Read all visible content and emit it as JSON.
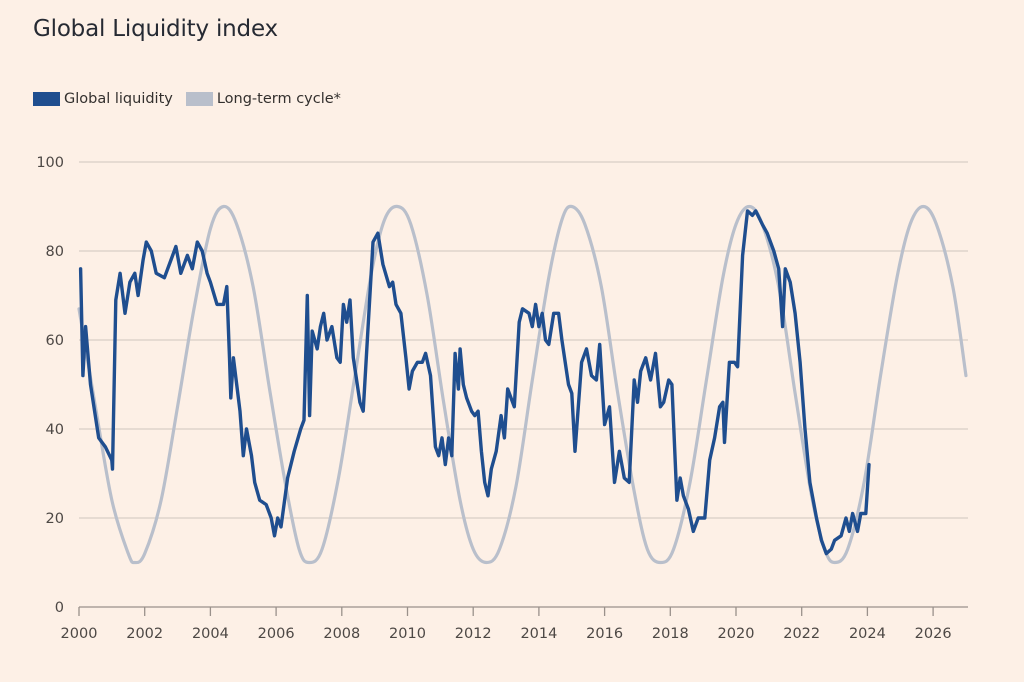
{
  "title": "Global Liquidity index",
  "legend": [
    {
      "label": "Global liquidity",
      "color": "#1f4e8f"
    },
    {
      "label": "Long-term cycle*",
      "color": "#b9bfcb"
    }
  ],
  "chart_data": {
    "type": "line",
    "title": "Global Liquidity index",
    "xlabel": "",
    "ylabel": "",
    "xlim": [
      2000,
      2027.1
    ],
    "ylim": [
      0,
      100
    ],
    "x_ticks": [
      2000,
      2002,
      2004,
      2006,
      2008,
      2010,
      2012,
      2014,
      2016,
      2018,
      2020,
      2022,
      2024,
      2026
    ],
    "x_tick_labels": [
      "2000",
      "2002",
      "2004",
      "2006",
      "2008",
      "2010",
      "2012",
      "2014",
      "2016",
      "2018",
      "2020",
      "2022",
      "2024",
      "2026"
    ],
    "y_ticks": [
      0,
      20,
      40,
      60,
      80,
      100
    ],
    "y_tick_labels": [
      "0",
      "20",
      "40",
      "60",
      "80",
      "100"
    ],
    "grid": "horizontal",
    "legend_position": "top-left",
    "series": [
      {
        "name": "Long-term cycle*",
        "color": "#b9bfcb",
        "x": [
          2000.0,
          2000.5,
          2001.0,
          2001.5,
          2001.7,
          2002.0,
          2002.5,
          2003.0,
          2003.5,
          2004.0,
          2004.4,
          2004.8,
          2005.3,
          2005.8,
          2006.3,
          2006.7,
          2007.0,
          2007.4,
          2007.9,
          2008.4,
          2008.9,
          2009.3,
          2009.7,
          2010.1,
          2010.6,
          2011.1,
          2011.6,
          2012.0,
          2012.4,
          2012.8,
          2013.3,
          2013.8,
          2014.3,
          2014.7,
          2015.0,
          2015.4,
          2015.9,
          2016.4,
          2016.9,
          2017.3,
          2017.7,
          2018.1,
          2018.6,
          2019.1,
          2019.6,
          2020.0,
          2020.4,
          2020.8,
          2021.3,
          2021.8,
          2022.3,
          2022.7,
          2023.0,
          2023.4,
          2023.9,
          2024.4,
          2024.9,
          2025.3,
          2025.7,
          2026.1,
          2026.6,
          2027.0
        ],
        "values": [
          67,
          45,
          24,
          12,
          10,
          12,
          24,
          45,
          67,
          85,
          90,
          86,
          72,
          49,
          27,
          13,
          10,
          13,
          29,
          52,
          75,
          87,
          90,
          86,
          70,
          46,
          24,
          13,
          10,
          13,
          27,
          51,
          74,
          87,
          90,
          86,
          72,
          48,
          26,
          13,
          10,
          13,
          28,
          51,
          74,
          86,
          90,
          86,
          72,
          48,
          25,
          13,
          10,
          13,
          28,
          52,
          74,
          86,
          90,
          86,
          72,
          52
        ]
      },
      {
        "name": "Global liquidity",
        "color": "#1f4e8f",
        "x": [
          2000.05,
          2000.12,
          2000.2,
          2000.35,
          2000.6,
          2000.8,
          2001.0,
          2001.02,
          2001.12,
          2001.25,
          2001.4,
          2001.55,
          2001.7,
          2001.8,
          2001.95,
          2002.05,
          2002.2,
          2002.35,
          2002.6,
          2002.8,
          2002.95,
          2003.1,
          2003.3,
          2003.45,
          2003.6,
          2003.75,
          2003.9,
          2004.0,
          2004.2,
          2004.4,
          2004.5,
          2004.58,
          2004.62,
          2004.7,
          2004.8,
          2004.9,
          2005.0,
          2005.1,
          2005.25,
          2005.35,
          2005.5,
          2005.7,
          2005.85,
          2005.95,
          2006.05,
          2006.15,
          2006.35,
          2006.55,
          2006.75,
          2006.85,
          2006.95,
          2007.02,
          2007.1,
          2007.25,
          2007.35,
          2007.45,
          2007.55,
          2007.7,
          2007.85,
          2007.95,
          2008.05,
          2008.15,
          2008.25,
          2008.35,
          2008.55,
          2008.65,
          2008.8,
          2008.95,
          2009.1,
          2009.25,
          2009.45,
          2009.55,
          2009.65,
          2009.8,
          2009.95,
          2010.05,
          2010.15,
          2010.3,
          2010.45,
          2010.55,
          2010.7,
          2010.85,
          2010.95,
          2011.05,
          2011.15,
          2011.25,
          2011.35,
          2011.45,
          2011.55,
          2011.6,
          2011.7,
          2011.8,
          2011.95,
          2012.05,
          2012.15,
          2012.25,
          2012.35,
          2012.45,
          2012.55,
          2012.7,
          2012.85,
          2012.95,
          2013.05,
          2013.25,
          2013.4,
          2013.5,
          2013.7,
          2013.8,
          2013.9,
          2014.0,
          2014.1,
          2014.2,
          2014.3,
          2014.45,
          2014.6,
          2014.7,
          2014.9,
          2015.0,
          2015.1,
          2015.3,
          2015.45,
          2015.6,
          2015.75,
          2015.85,
          2016.0,
          2016.15,
          2016.3,
          2016.45,
          2016.6,
          2016.75,
          2016.9,
          2017.0,
          2017.1,
          2017.25,
          2017.4,
          2017.55,
          2017.7,
          2017.8,
          2017.95,
          2018.05,
          2018.2,
          2018.3,
          2018.4,
          2018.55,
          2018.7,
          2018.85,
          2019.05,
          2019.2,
          2019.35,
          2019.5,
          2019.6,
          2019.65,
          2019.8,
          2019.95,
          2020.05,
          2020.2,
          2020.35,
          2020.5,
          2020.6,
          2020.8,
          2020.95,
          2021.15,
          2021.3,
          2021.42,
          2021.5,
          2021.65,
          2021.8,
          2021.95,
          2022.1,
          2022.25,
          2022.45,
          2022.6,
          2022.75,
          2022.9,
          2023.0,
          2023.2,
          2023.35,
          2023.45,
          2023.55,
          2023.7,
          2023.8,
          2023.95,
          2024.05
        ],
        "values": [
          76,
          52,
          63,
          50,
          38,
          36,
          33,
          31,
          69,
          75,
          66,
          73,
          75,
          70,
          78,
          82,
          80,
          75,
          74,
          78,
          81,
          75,
          79,
          76,
          82,
          80,
          75,
          73,
          68,
          68,
          72,
          56,
          47,
          56,
          50,
          44,
          34,
          40,
          34,
          28,
          24,
          23,
          20,
          16,
          20,
          18,
          29,
          35,
          40,
          42,
          70,
          43,
          62,
          58,
          63,
          66,
          60,
          63,
          56,
          55,
          68,
          64,
          69,
          56,
          46,
          44,
          63,
          82,
          84,
          77,
          72,
          73,
          68,
          66,
          56,
          49,
          53,
          55,
          55,
          57,
          52,
          36,
          34,
          38,
          32,
          38,
          34,
          57,
          49,
          58,
          50,
          47,
          44,
          43,
          44,
          35,
          28,
          25,
          31,
          35,
          43,
          38,
          49,
          45,
          64,
          67,
          66,
          63,
          68,
          63,
          66,
          60,
          59,
          66,
          66,
          60,
          50,
          48,
          35,
          55,
          58,
          52,
          51,
          59,
          41,
          45,
          28,
          35,
          29,
          28,
          51,
          46,
          53,
          56,
          51,
          57,
          45,
          46,
          51,
          50,
          24,
          29,
          25,
          22,
          17,
          20,
          20,
          33,
          38,
          45,
          46,
          37,
          55,
          55,
          54,
          79,
          89,
          88,
          89,
          86,
          84,
          80,
          76,
          63,
          76,
          73,
          66,
          55,
          40,
          28,
          20,
          15,
          12,
          13,
          15,
          16,
          20,
          17,
          21,
          17,
          21,
          21,
          32
        ]
      }
    ]
  }
}
